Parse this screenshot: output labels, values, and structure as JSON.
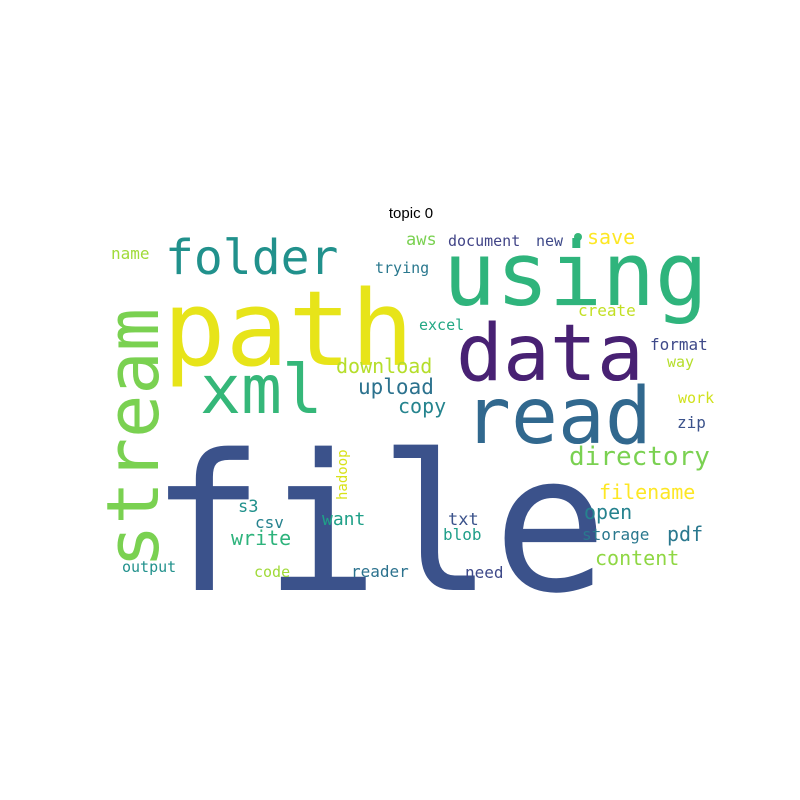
{
  "title": "topic 0",
  "words": [
    {
      "text": "file",
      "color": "#3b528b"
    },
    {
      "text": "path",
      "color": "#e7e419"
    },
    {
      "text": "using",
      "color": "#2fb47c"
    },
    {
      "text": "data",
      "color": "#482173"
    },
    {
      "text": "read",
      "color": "#31688e"
    },
    {
      "text": "stream",
      "color": "#7ad151"
    },
    {
      "text": "xml",
      "color": "#35b779"
    },
    {
      "text": "folder",
      "color": "#21918c"
    },
    {
      "text": "directory",
      "color": "#7ad151"
    },
    {
      "text": "upload",
      "color": "#2c728e"
    },
    {
      "text": "copy",
      "color": "#25848e"
    },
    {
      "text": "download",
      "color": "#b5de2b"
    },
    {
      "text": "filename",
      "color": "#fde725"
    },
    {
      "text": "open",
      "color": "#26828e"
    },
    {
      "text": "pdf",
      "color": "#2a788e"
    },
    {
      "text": "write",
      "color": "#2eb37c"
    },
    {
      "text": "want",
      "color": "#1fa088"
    },
    {
      "text": "content",
      "color": "#8fd744"
    },
    {
      "text": "save",
      "color": "#fde725"
    },
    {
      "text": "aws",
      "color": "#7ad151"
    },
    {
      "text": "document",
      "color": "#414487"
    },
    {
      "text": "new",
      "color": "#3e4989"
    },
    {
      "text": "name",
      "color": "#a0da39"
    },
    {
      "text": "trying",
      "color": "#2a788e"
    },
    {
      "text": "create",
      "color": "#c2df23"
    },
    {
      "text": "excel",
      "color": "#22a884"
    },
    {
      "text": "format",
      "color": "#3e4989"
    },
    {
      "text": "way",
      "color": "#b5de2b"
    },
    {
      "text": "work",
      "color": "#d0e11c"
    },
    {
      "text": "zip",
      "color": "#3b528b"
    },
    {
      "text": "hadoop",
      "color": "#d8e219"
    },
    {
      "text": "s3",
      "color": "#21918c"
    },
    {
      "text": "csv",
      "color": "#26828e"
    },
    {
      "text": "txt",
      "color": "#3b528b"
    },
    {
      "text": "blob",
      "color": "#1f9e89"
    },
    {
      "text": "storage",
      "color": "#2a788e"
    },
    {
      "text": "output",
      "color": "#21918c"
    },
    {
      "text": "code",
      "color": "#a0da39"
    },
    {
      "text": "reader",
      "color": "#2c728e"
    },
    {
      "text": "need",
      "color": "#3e4989"
    }
  ]
}
